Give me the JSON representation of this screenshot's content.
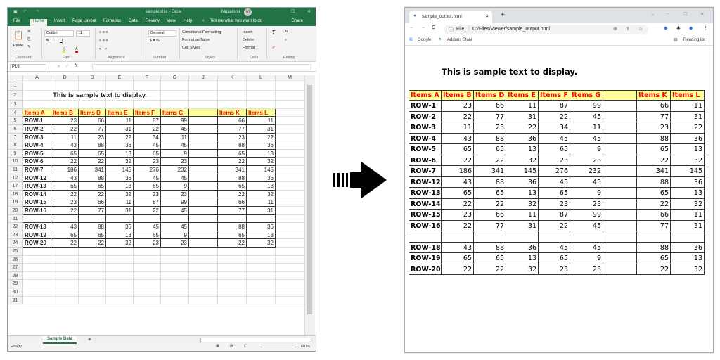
{
  "excel": {
    "title": "sample.xlsx - Excel",
    "user": "Muzammil",
    "user_initials": "M",
    "tabs": [
      "File",
      "Home",
      "Insert",
      "Page Layout",
      "Formulas",
      "Data",
      "Review",
      "View",
      "Help"
    ],
    "tell_me": "Tell me what you want to do",
    "share": "Share",
    "ribbon": {
      "paste": "Paste",
      "font_name": "Calibri",
      "font_size": "11",
      "number_format": "General",
      "conditional_formatting": "Conditional Formatting",
      "format_as_table": "Format as Table",
      "cell_styles": "Cell Styles",
      "insert": "Insert",
      "delete": "Delete",
      "format": "Format",
      "groups": [
        "Clipboard",
        "Font",
        "Alignment",
        "Number",
        "Styles",
        "Cells",
        "Editing"
      ]
    },
    "name_box": "P16",
    "fx": "fx",
    "column_letters": [
      "A",
      "B",
      "D",
      "E",
      "F",
      "G",
      "J",
      "K",
      "L",
      "M"
    ],
    "row_numbers": [
      "1",
      "2",
      "3",
      "4",
      "5",
      "6",
      "7",
      "8",
      "9",
      "10",
      "11",
      "12",
      "17",
      "18",
      "19",
      "20",
      "21",
      "22",
      "23",
      "24",
      "25",
      "26",
      "27",
      "28",
      "29",
      "30",
      "31"
    ],
    "sheet_tab": "Sample Data",
    "status": "Ready",
    "zoom": "140%"
  },
  "table": {
    "title": "This is sample text to display.",
    "headers": [
      "Items A",
      "Items B",
      "Items D",
      "Items E",
      "Items F",
      "Items G",
      "",
      "Items K",
      "Items L"
    ],
    "rows": [
      [
        "ROW-1",
        "23",
        "66",
        "11",
        "87",
        "99",
        "",
        "66",
        "11"
      ],
      [
        "ROW-2",
        "22",
        "77",
        "31",
        "22",
        "45",
        "",
        "77",
        "31"
      ],
      [
        "ROW-3",
        "11",
        "23",
        "22",
        "34",
        "11",
        "",
        "23",
        "22"
      ],
      [
        "ROW-4",
        "43",
        "88",
        "36",
        "45",
        "45",
        "",
        "88",
        "36"
      ],
      [
        "ROW-5",
        "65",
        "65",
        "13",
        "65",
        "9",
        "",
        "65",
        "13"
      ],
      [
        "ROW-6",
        "22",
        "22",
        "32",
        "23",
        "23",
        "",
        "22",
        "32"
      ],
      [
        "ROW-7",
        "186",
        "341",
        "145",
        "276",
        "232",
        "",
        "341",
        "145"
      ],
      [
        "ROW-12",
        "43",
        "88",
        "36",
        "45",
        "45",
        "",
        "88",
        "36"
      ],
      [
        "ROW-13",
        "65",
        "65",
        "13",
        "65",
        "9",
        "",
        "65",
        "13"
      ],
      [
        "ROW-14",
        "22",
        "22",
        "32",
        "23",
        "23",
        "",
        "22",
        "32"
      ],
      [
        "ROW-15",
        "23",
        "66",
        "11",
        "87",
        "99",
        "",
        "66",
        "11"
      ],
      [
        "ROW-16",
        "22",
        "77",
        "31",
        "22",
        "45",
        "",
        "77",
        "31"
      ],
      [
        "",
        "",
        "",
        "",
        "",
        "",
        "",
        "",
        ""
      ],
      [
        "ROW-18",
        "43",
        "88",
        "36",
        "45",
        "45",
        "",
        "88",
        "36"
      ],
      [
        "ROW-19",
        "65",
        "65",
        "13",
        "65",
        "9",
        "",
        "65",
        "13"
      ],
      [
        "ROW-20",
        "22",
        "22",
        "32",
        "23",
        "23",
        "",
        "22",
        "32"
      ]
    ]
  },
  "browser": {
    "tab_title": "sample_output.html",
    "protocol": "File",
    "url": "C:/Files/Viewer/sample_output.html",
    "bookmarks": [
      "Google",
      "Addons Store"
    ],
    "reading_list": "Reading list"
  },
  "colors": {
    "excel_green": "#217346",
    "header_fill": "#ffff99",
    "header_text": "#ff0000"
  }
}
